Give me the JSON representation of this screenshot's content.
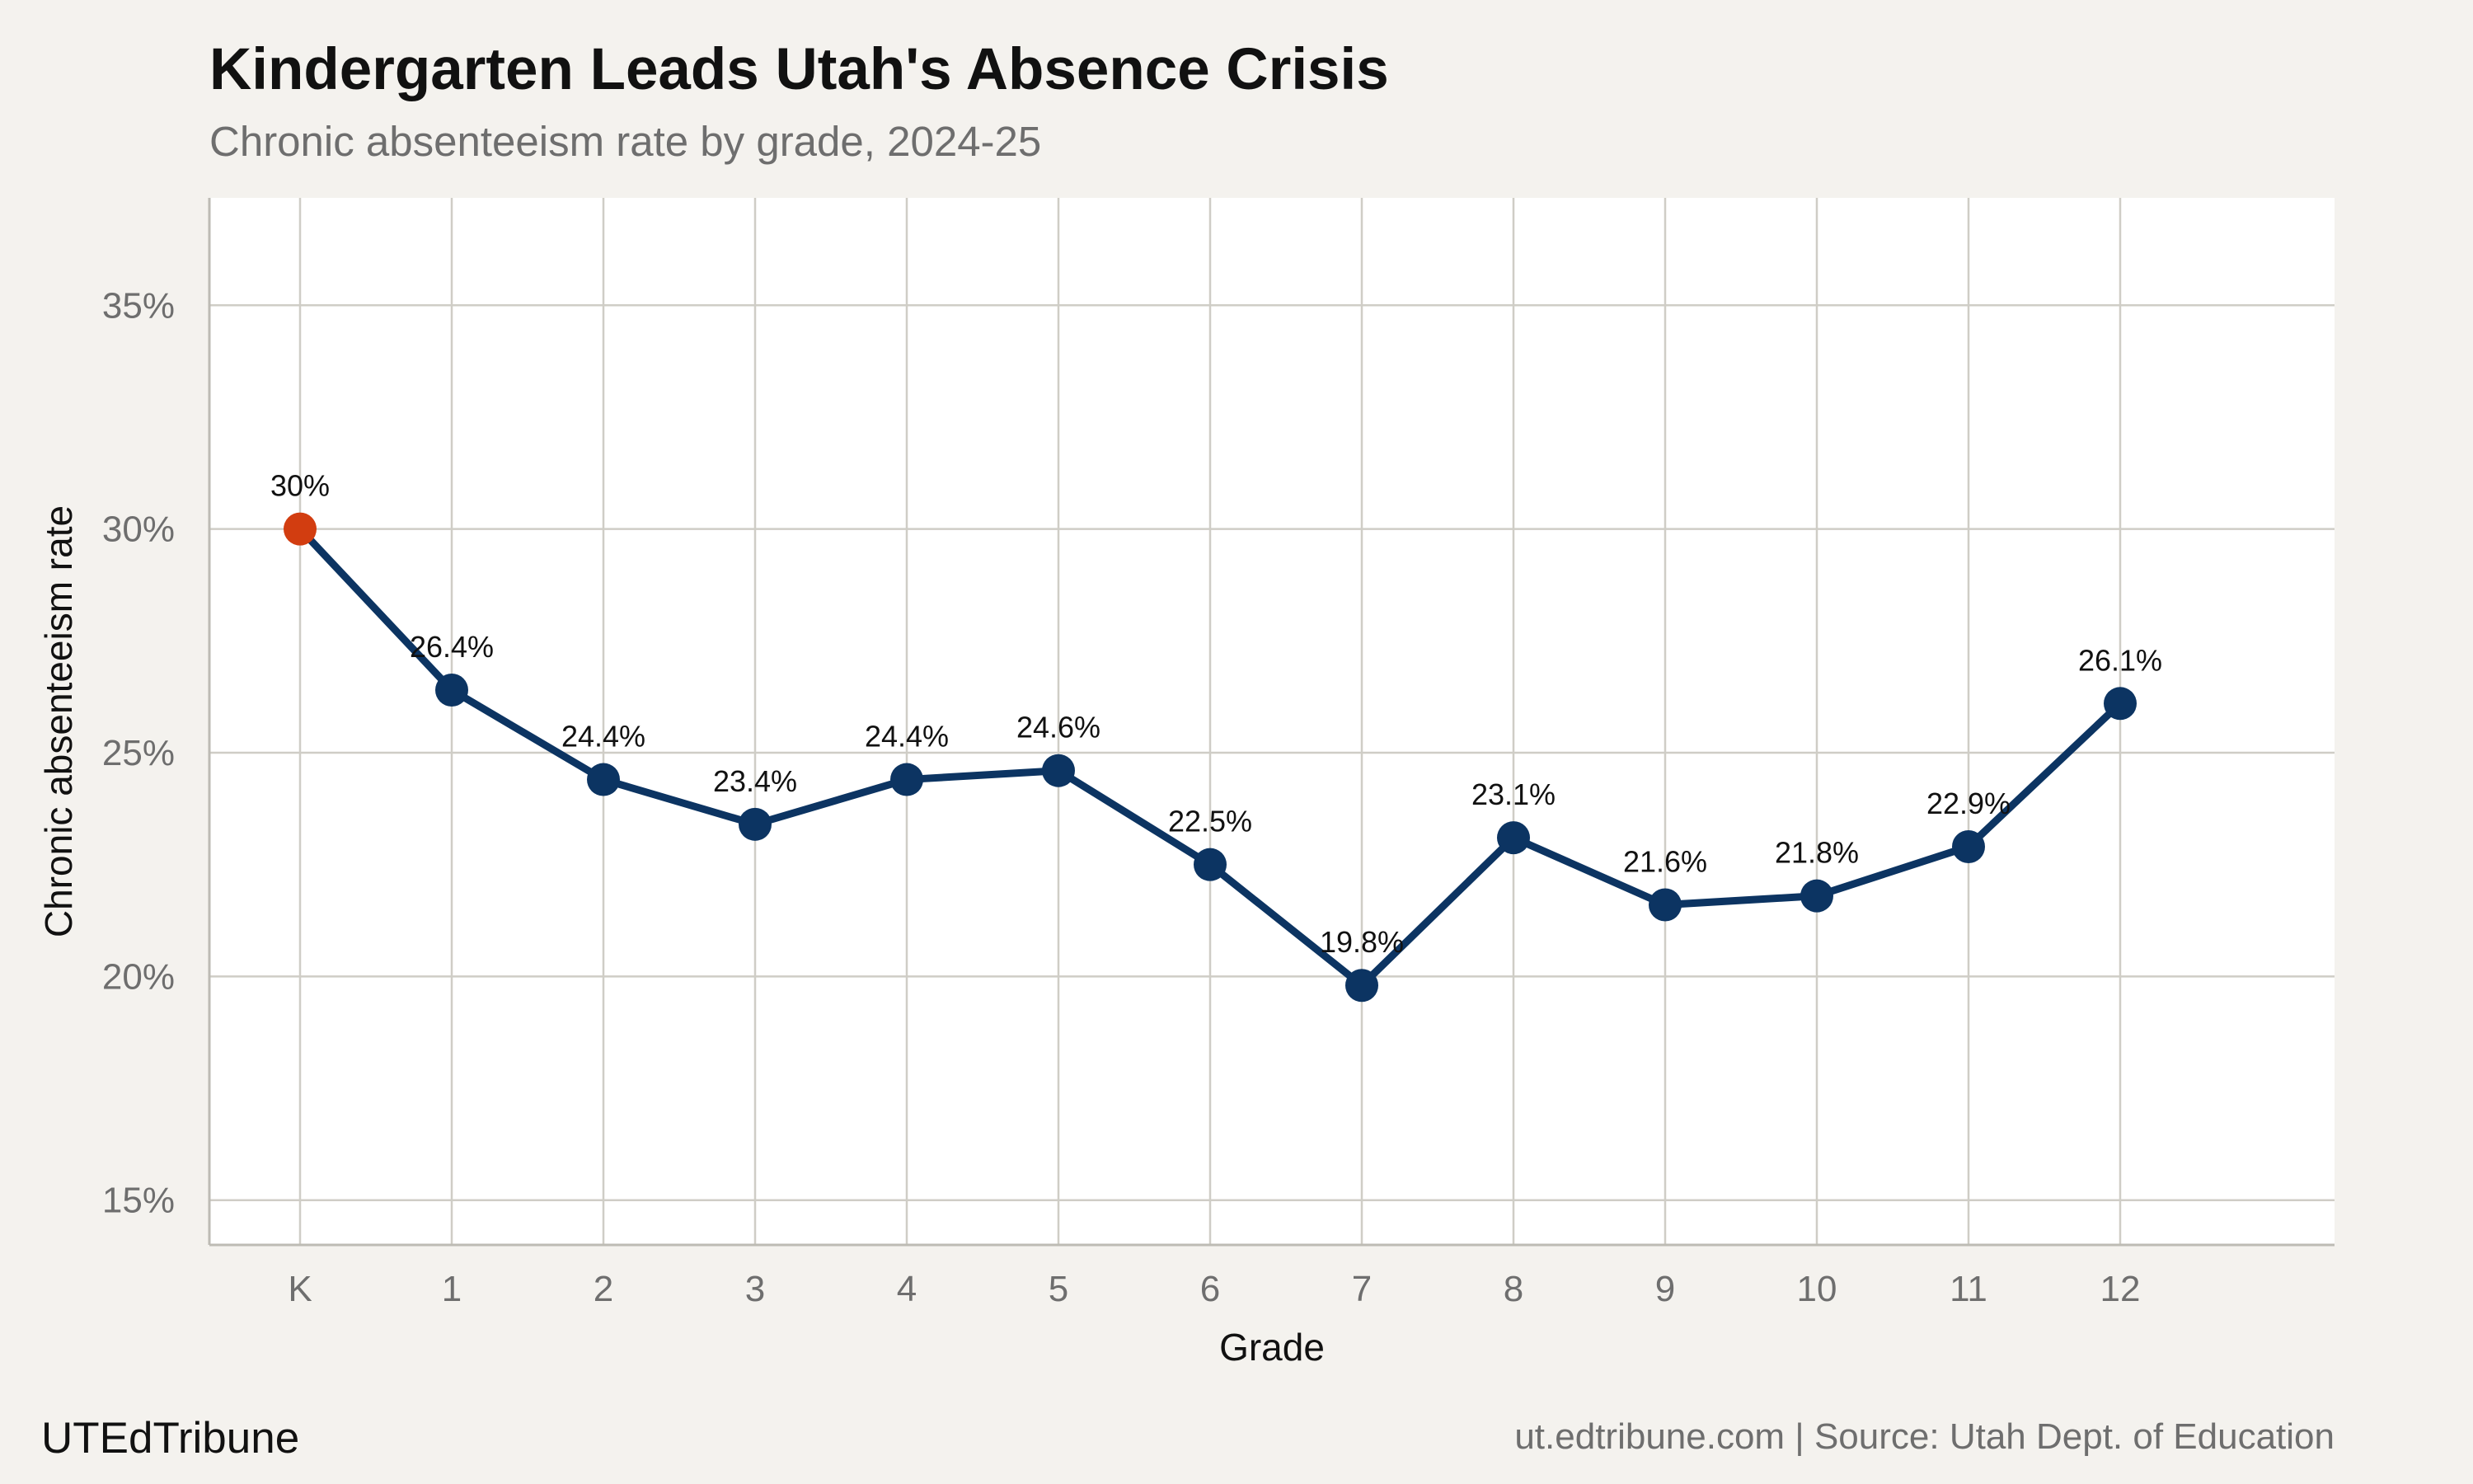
{
  "header": {
    "title": "Kindergarten Leads Utah's Absence Crisis",
    "subtitle": "Chronic absenteeism rate by grade, 2024-25"
  },
  "footer": {
    "brand": "UTEdTribune",
    "source": "ut.edtribune.com | Source: Utah Dept. of Education"
  },
  "colors": {
    "line": "#0c3462",
    "highlight": "#d23d10",
    "grid": "#cfcdc6",
    "panel": "#ffffff",
    "background": "#f4f2ee"
  },
  "chart_data": {
    "type": "line",
    "title": "Kindergarten Leads Utah's Absence Crisis",
    "subtitle": "Chronic absenteeism rate by grade, 2024-25",
    "xlabel": "Grade",
    "ylabel": "Chronic absenteeism rate",
    "categories": [
      "K",
      "1",
      "2",
      "3",
      "4",
      "5",
      "6",
      "7",
      "8",
      "9",
      "10",
      "11",
      "12"
    ],
    "values": [
      30.0,
      26.4,
      24.4,
      23.4,
      24.4,
      24.6,
      22.5,
      19.8,
      23.1,
      21.6,
      21.8,
      22.9,
      26.1
    ],
    "data_labels": [
      "30%",
      "26.4%",
      "24.4%",
      "23.4%",
      "24.4%",
      "24.6%",
      "22.5%",
      "19.8%",
      "23.1%",
      "21.6%",
      "21.8%",
      "22.9%",
      "26.1%"
    ],
    "highlight_category": "K",
    "ylim": [
      14,
      37.4
    ],
    "yticks": [
      15,
      20,
      25,
      30,
      35
    ],
    "ytick_labels": [
      "15%",
      "20%",
      "25%",
      "30%",
      "35%"
    ],
    "grid": true,
    "legend": "none"
  }
}
